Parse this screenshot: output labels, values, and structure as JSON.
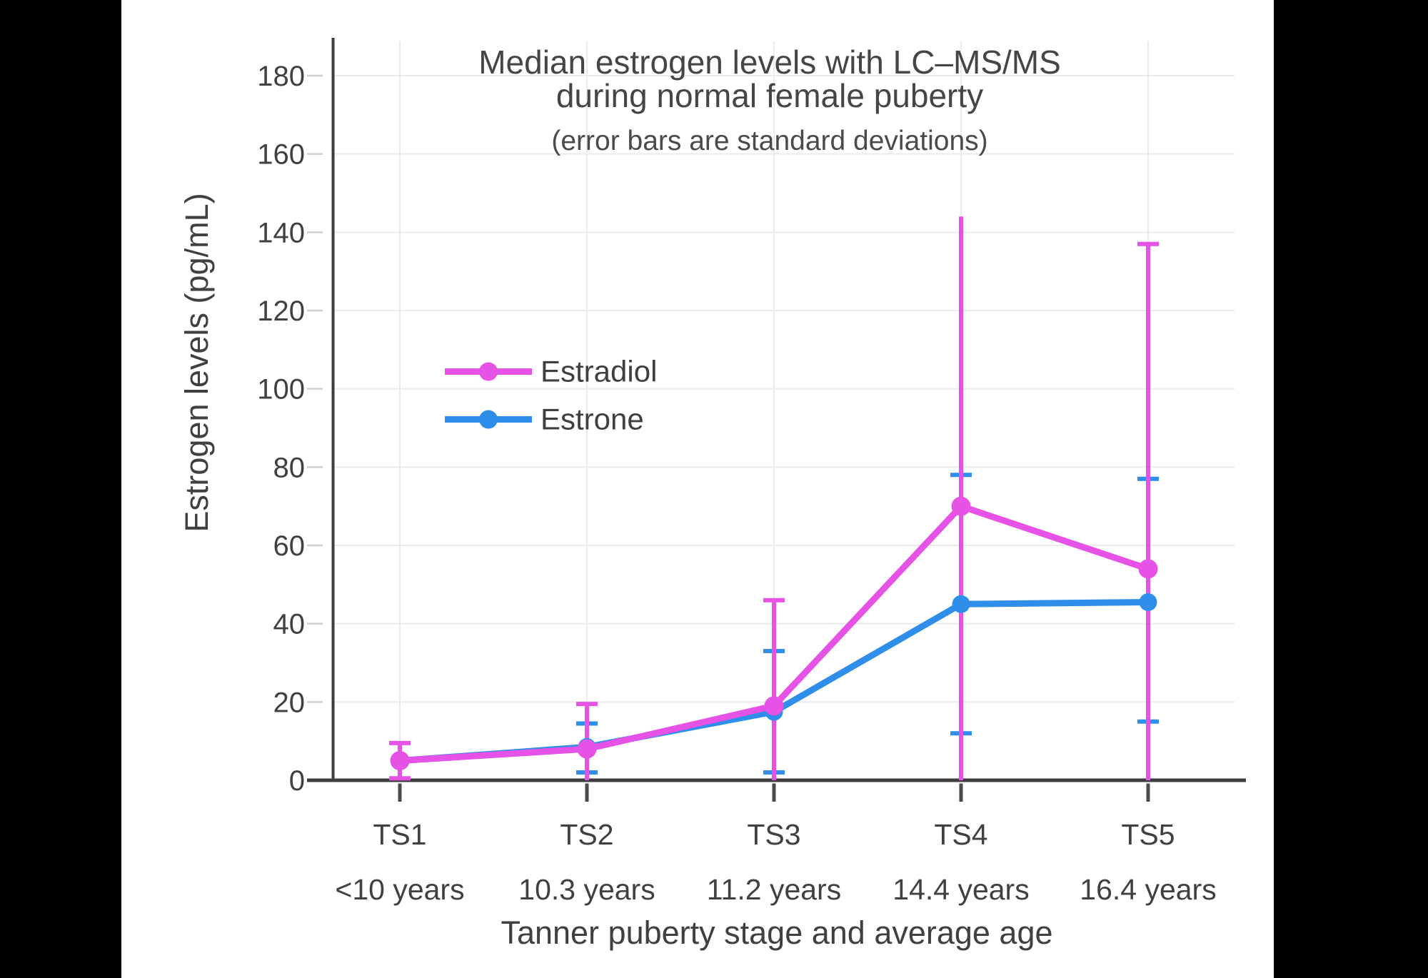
{
  "page": {
    "background_color": "#000000",
    "plot_background_color": "#ffffff"
  },
  "chart_data": {
    "type": "line",
    "title": "Median estrogen levels with LC–MS/MS during normal female puberty",
    "title_lines": [
      "Median estrogen levels with LC–MS/MS",
      "during normal female puberty"
    ],
    "subtitle": "(error bars are standard deviations)",
    "xlabel": "Tanner puberty stage and average age",
    "ylabel": "Estrogen levels (pg/mL)",
    "categories": [
      "TS1",
      "TS2",
      "TS3",
      "TS4",
      "TS5"
    ],
    "category_ages": [
      "<10 years",
      "10.3 years",
      "11.2 years",
      "14.4 years",
      "16.4 years"
    ],
    "yticks": [
      0,
      20,
      40,
      60,
      80,
      100,
      120,
      140,
      160,
      180
    ],
    "ylim": [
      0,
      190
    ],
    "grid": true,
    "legend_position": "inside-upper-left",
    "axis_color": "#3d3d3d",
    "grid_color": "#ebebeb",
    "minor_tick_color": "#d0d0d0",
    "text_color": "#404040",
    "series": [
      {
        "name": "Estradiol",
        "color": "#e552e5",
        "values": [
          5,
          8,
          19,
          70,
          54
        ],
        "error_low": [
          0.5,
          0,
          0,
          0,
          0
        ],
        "error_high": [
          9.5,
          19.5,
          46,
          144,
          137
        ],
        "cap_low": [
          true,
          false,
          false,
          false,
          false
        ],
        "cap_high": [
          true,
          true,
          true,
          false,
          true
        ]
      },
      {
        "name": "Estrone",
        "color": "#2e8ee9",
        "values": [
          5,
          8.5,
          17.5,
          45,
          45.5
        ],
        "error_low": [
          null,
          2,
          2,
          12,
          15
        ],
        "error_high": [
          null,
          14.5,
          33,
          78,
          77
        ],
        "cap_low": [
          false,
          true,
          true,
          true,
          true
        ],
        "cap_high": [
          false,
          true,
          true,
          true,
          true
        ]
      }
    ]
  }
}
